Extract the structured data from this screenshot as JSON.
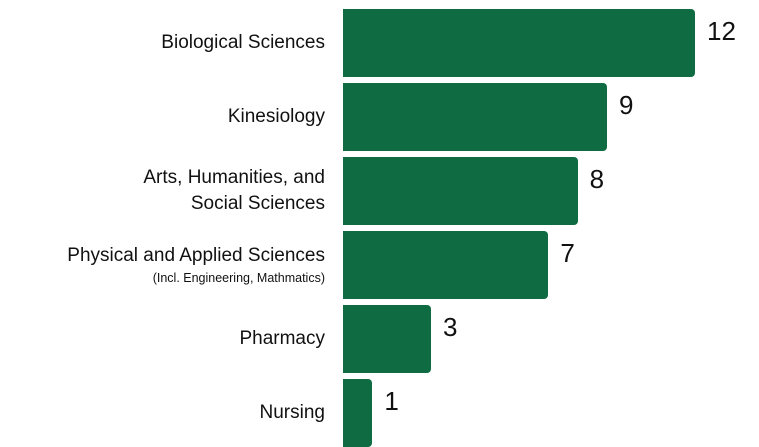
{
  "chart_data": {
    "type": "barh",
    "categories": [
      "Biological Sciences",
      "Kinesiology",
      "Arts, Humanities, and\nSocial Sciences",
      "Physical and Applied Sciences",
      "Pharmacy",
      "Nursing"
    ],
    "category_notes": [
      null,
      null,
      null,
      "(Incl. Engineering, Mathmatics)",
      null,
      null
    ],
    "values": [
      12,
      9,
      8,
      7,
      3,
      1
    ],
    "color": "#0e6b42",
    "xlim": [
      0,
      12
    ]
  }
}
